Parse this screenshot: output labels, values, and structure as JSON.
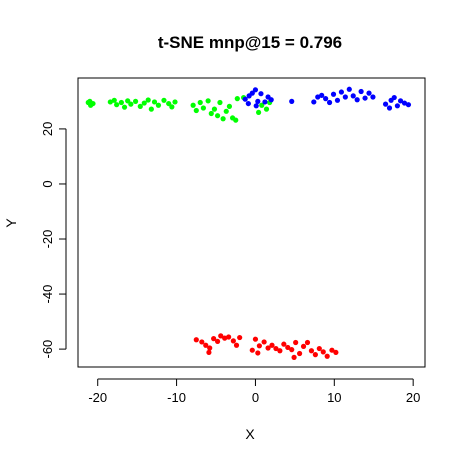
{
  "chart_data": {
    "type": "scatter",
    "title": "t-SNE mnp@15 = 0.796",
    "xlabel": "X",
    "ylabel": "Y",
    "xlim": [
      -22.5,
      21.5
    ],
    "ylim": [
      -66.5,
      38.5
    ],
    "xticks": [
      -20,
      -10,
      0,
      10,
      20
    ],
    "yticks": [
      -60,
      -40,
      -20,
      0,
      20
    ],
    "grid": false,
    "legend": "none",
    "series": [
      {
        "color": "#00ff00",
        "points": [
          [
            -21.0,
            30.0
          ],
          [
            -20.6,
            29.2
          ],
          [
            -20.9,
            28.6
          ],
          [
            -21.2,
            29.6
          ],
          [
            -18.4,
            29.8
          ],
          [
            -17.9,
            30.4
          ],
          [
            -17.6,
            28.8
          ],
          [
            -17.0,
            29.6
          ],
          [
            -16.6,
            27.9
          ],
          [
            -16.2,
            30.2
          ],
          [
            -15.8,
            29.0
          ],
          [
            -15.2,
            30.0
          ],
          [
            -14.6,
            28.2
          ],
          [
            -14.1,
            29.4
          ],
          [
            -13.6,
            30.5
          ],
          [
            -13.2,
            27.2
          ],
          [
            -12.8,
            29.8
          ],
          [
            -12.3,
            28.6
          ],
          [
            -11.6,
            30.4
          ],
          [
            -11.0,
            29.2
          ],
          [
            -10.6,
            28.0
          ],
          [
            -10.2,
            29.8
          ],
          [
            -7.9,
            28.6
          ],
          [
            -7.5,
            26.7
          ],
          [
            -7.0,
            29.6
          ],
          [
            -6.6,
            27.6
          ],
          [
            -6.0,
            30.2
          ],
          [
            -5.6,
            25.6
          ],
          [
            -5.2,
            27.2
          ],
          [
            -4.8,
            24.8
          ],
          [
            -4.5,
            29.6
          ],
          [
            -4.1,
            23.7
          ],
          [
            -3.7,
            26.4
          ],
          [
            -3.3,
            28.2
          ],
          [
            -2.9,
            24.0
          ],
          [
            -2.5,
            23.2
          ],
          [
            -2.3,
            31.0
          ],
          [
            -1.5,
            31.4
          ],
          [
            0.8,
            28.6
          ],
          [
            1.4,
            27.2
          ],
          [
            0.4,
            26.0
          ],
          [
            1.8,
            29.6
          ]
        ]
      },
      {
        "color": "#0000ff",
        "points": [
          [
            -1.3,
            30.8
          ],
          [
            -0.8,
            32.0
          ],
          [
            -0.4,
            33.0
          ],
          [
            0.0,
            34.2
          ],
          [
            0.3,
            30.0
          ],
          [
            0.7,
            32.8
          ],
          [
            1.2,
            29.8
          ],
          [
            1.6,
            31.6
          ],
          [
            2.0,
            30.6
          ],
          [
            -0.9,
            29.2
          ],
          [
            0.1,
            28.4
          ],
          [
            4.6,
            30.0
          ],
          [
            7.4,
            29.8
          ],
          [
            7.9,
            31.6
          ],
          [
            8.4,
            32.2
          ],
          [
            8.9,
            31.0
          ],
          [
            9.4,
            29.6
          ],
          [
            9.9,
            32.6
          ],
          [
            10.4,
            30.4
          ],
          [
            10.9,
            33.4
          ],
          [
            11.4,
            31.6
          ],
          [
            11.9,
            34.4
          ],
          [
            12.4,
            32.0
          ],
          [
            12.9,
            30.6
          ],
          [
            13.4,
            33.6
          ],
          [
            13.9,
            31.2
          ],
          [
            14.4,
            33.0
          ],
          [
            16.5,
            29.0
          ],
          [
            17.2,
            30.4
          ],
          [
            17.6,
            31.4
          ],
          [
            18.0,
            28.4
          ],
          [
            18.4,
            30.2
          ],
          [
            18.9,
            29.4
          ],
          [
            19.4,
            28.8
          ],
          [
            17.0,
            27.6
          ],
          [
            14.9,
            31.6
          ]
        ]
      },
      {
        "color": "#ff0000",
        "points": [
          [
            -7.5,
            -56.6
          ],
          [
            -6.8,
            -57.4
          ],
          [
            -6.3,
            -58.6
          ],
          [
            -5.8,
            -59.6
          ],
          [
            -5.3,
            -56.2
          ],
          [
            -4.8,
            -57.2
          ],
          [
            -4.4,
            -55.2
          ],
          [
            -3.9,
            -56.0
          ],
          [
            -3.4,
            -55.6
          ],
          [
            -2.8,
            -57.0
          ],
          [
            -2.4,
            -58.6
          ],
          [
            -2.0,
            -55.8
          ],
          [
            -5.9,
            -61.2
          ],
          [
            0.0,
            -56.4
          ],
          [
            0.5,
            -58.8
          ],
          [
            0.3,
            -61.4
          ],
          [
            1.1,
            -57.4
          ],
          [
            1.6,
            -59.6
          ],
          [
            2.1,
            -58.6
          ],
          [
            2.6,
            -59.8
          ],
          [
            3.1,
            -60.6
          ],
          [
            3.6,
            -58.2
          ],
          [
            4.1,
            -59.4
          ],
          [
            4.6,
            -60.2
          ],
          [
            5.1,
            -57.6
          ],
          [
            5.6,
            -61.6
          ],
          [
            6.1,
            -59.0
          ],
          [
            6.6,
            -57.6
          ],
          [
            7.1,
            -60.6
          ],
          [
            7.6,
            -62.0
          ],
          [
            8.1,
            -59.8
          ],
          [
            8.6,
            -61.0
          ],
          [
            9.1,
            -62.6
          ],
          [
            9.7,
            -60.4
          ],
          [
            10.2,
            -61.2
          ],
          [
            4.9,
            -63.0
          ],
          [
            -0.4,
            -60.4
          ]
        ]
      }
    ]
  }
}
